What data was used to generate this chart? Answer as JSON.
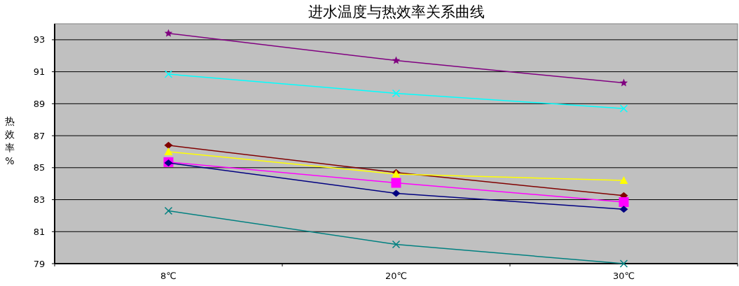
{
  "chart_data": {
    "type": "line",
    "title": "进水温度与热效率关系曲线",
    "ylabel": "热效率%",
    "categories": [
      "8℃",
      "20℃",
      "30℃"
    ],
    "series": [
      {
        "color": "#800080",
        "marker": "star",
        "values": [
          93.4,
          91.7,
          90.3
        ]
      },
      {
        "color": "#00ffff",
        "marker": "cross",
        "values": [
          90.85,
          89.65,
          88.7
        ]
      },
      {
        "color": "#800000",
        "marker": "diamond",
        "values": [
          86.4,
          84.7,
          83.25
        ]
      },
      {
        "color": "#ffff00",
        "marker": "triangle",
        "values": [
          86.0,
          84.6,
          84.2
        ]
      },
      {
        "color": "#ff00ff",
        "marker": "square",
        "values": [
          85.35,
          84.05,
          82.85
        ]
      },
      {
        "color": "#000080",
        "marker": "diamond",
        "values": [
          85.3,
          83.4,
          82.4
        ]
      },
      {
        "color": "#008080",
        "marker": "cross",
        "values": [
          82.3,
          80.2,
          79.0
        ]
      }
    ],
    "ylim": [
      79,
      94
    ],
    "yticks": [
      79,
      81,
      83,
      85,
      87,
      89,
      91,
      93
    ],
    "grid": "y"
  }
}
